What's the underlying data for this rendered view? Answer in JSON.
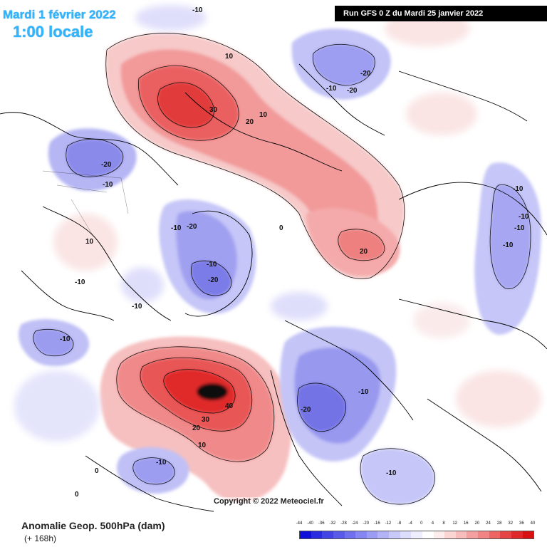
{
  "title_date": "Mardi 1 février 2022",
  "title_time": "1:00 locale",
  "run_info": "Run GFS 0 Z du Mardi 25 janvier 2022",
  "copyright": "Copyright © 2022 Meteociel.fr",
  "legend": {
    "title": "Anomalie Geop. 500hPa (dam)",
    "subtitle": "(+ 168h)",
    "ticks": [
      "-44",
      "-40",
      "-36",
      "-32",
      "-28",
      "-24",
      "-20",
      "-16",
      "-12",
      "-8",
      "-4",
      "0",
      "4",
      "8",
      "12",
      "16",
      "20",
      "24",
      "28",
      "32",
      "36",
      "40"
    ],
    "colors": [
      "#1010d8",
      "#2a2ae0",
      "#4444e6",
      "#5a5aea",
      "#7070ee",
      "#8686f2",
      "#9c9cf4",
      "#b2b2f7",
      "#c8c8fa",
      "#dcdcfc",
      "#eeeefe",
      "#ffffff",
      "#fdecec",
      "#fbd4d4",
      "#f9bcbc",
      "#f5a0a0",
      "#f18484",
      "#ec6464",
      "#e64444",
      "#e02828",
      "#d81010"
    ]
  },
  "contour_labels": {
    "north_america_low": "-20",
    "north_america_low2": "-10",
    "pacific_high": "30",
    "pacific_high_20": "20",
    "pacific_high_10": "10",
    "top_10": "-10",
    "top_10b": "10",
    "scandinavia_low1": "-20",
    "scandinavia_low2": "-20",
    "scandinavia_low3": "-10",
    "siberia_high": "20",
    "greenland_low1": "-10",
    "greenland_low2": "-20",
    "greenland_low3": "-10",
    "greenland_low4": "-20",
    "canada_low": "-10",
    "pacific_low": "-10",
    "atlantic_high": "40",
    "atlantic_high30": "30",
    "atlantic_high20": "20",
    "atlantic_high10": "10",
    "europe_low": "-20",
    "europe_low2": "-10",
    "asia_low1": "-10",
    "asia_low2": "-10",
    "asia_low3": "-10",
    "asia_low4": "-10",
    "china_low": "-10",
    "mid_atlantic_low": "-10",
    "zero_a": "0",
    "zero_b": "0",
    "zero_c": "0",
    "na_10": "10",
    "na_10b": "-10"
  }
}
